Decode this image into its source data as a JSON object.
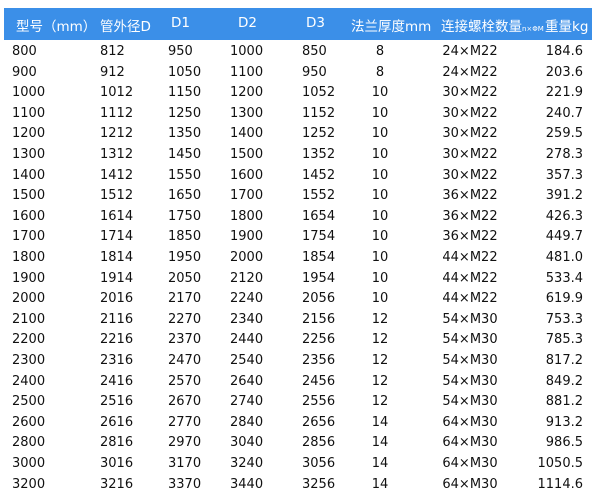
{
  "header": {
    "model": "型号（mm）",
    "od": "管外径D",
    "d1": "D1",
    "d2": "D2",
    "d3": "D3",
    "thickness": "法兰厚度mm",
    "bolts": "连接螺栓数量",
    "bolts_unit": "n×ΦM",
    "weight": "重量kg"
  },
  "header_color": "#3b8fe8",
  "rows": [
    [
      "800",
      "812",
      "950",
      "1000",
      "850",
      "8",
      "24×M22",
      "184.6"
    ],
    [
      "900",
      "912",
      "1050",
      "1100",
      "950",
      "8",
      "24×M22",
      "203.6"
    ],
    [
      "1000",
      "1012",
      "1150",
      "1200",
      "1052",
      "10",
      "30×M22",
      "221.9"
    ],
    [
      "1100",
      "1112",
      "1250",
      "1300",
      "1152",
      "10",
      "30×M22",
      "240.7"
    ],
    [
      "1200",
      "1212",
      "1350",
      "1400",
      "1252",
      "10",
      "30×M22",
      "259.5"
    ],
    [
      "1300",
      "1312",
      "1450",
      "1500",
      "1352",
      "10",
      "30×M22",
      "278.3"
    ],
    [
      "1400",
      "1412",
      "1550",
      "1600",
      "1452",
      "10",
      "30×M22",
      "357.3"
    ],
    [
      "1500",
      "1512",
      "1650",
      "1700",
      "1552",
      "10",
      "36×M22",
      "391.2"
    ],
    [
      "1600",
      "1614",
      "1750",
      "1800",
      "1654",
      "10",
      "36×M22",
      "426.3"
    ],
    [
      "1700",
      "1714",
      "1850",
      "1900",
      "1754",
      "10",
      "36×M22",
      "449.7"
    ],
    [
      "1800",
      "1814",
      "1950",
      "2000",
      "1854",
      "10",
      "44×M22",
      "481.0"
    ],
    [
      "1900",
      "1914",
      "2050",
      "2120",
      "1954",
      "10",
      "44×M22",
      "533.4"
    ],
    [
      "2000",
      "2016",
      "2170",
      "2240",
      "2056",
      "10",
      "44×M22",
      "619.9"
    ],
    [
      "2100",
      "2116",
      "2270",
      "2340",
      "2156",
      "12",
      "54×M30",
      "753.3"
    ],
    [
      "2200",
      "2216",
      "2370",
      "2440",
      "2256",
      "12",
      "54×M30",
      "785.3"
    ],
    [
      "2300",
      "2316",
      "2470",
      "2540",
      "2356",
      "12",
      "54×M30",
      "817.2"
    ],
    [
      "2400",
      "2416",
      "2570",
      "2640",
      "2456",
      "12",
      "54×M30",
      "849.2"
    ],
    [
      "2500",
      "2516",
      "2670",
      "2740",
      "2556",
      "12",
      "54×M30",
      "881.2"
    ],
    [
      "2600",
      "2616",
      "2770",
      "2840",
      "2656",
      "14",
      "64×M30",
      "913.2"
    ],
    [
      "2800",
      "2816",
      "2970",
      "3040",
      "2856",
      "14",
      "64×M30",
      "986.5"
    ],
    [
      "3000",
      "3016",
      "3170",
      "3240",
      "3056",
      "14",
      "64×M30",
      "1050.5"
    ],
    [
      "3200",
      "3216",
      "3370",
      "3440",
      "3256",
      "14",
      "64×M30",
      "1114.6"
    ]
  ]
}
